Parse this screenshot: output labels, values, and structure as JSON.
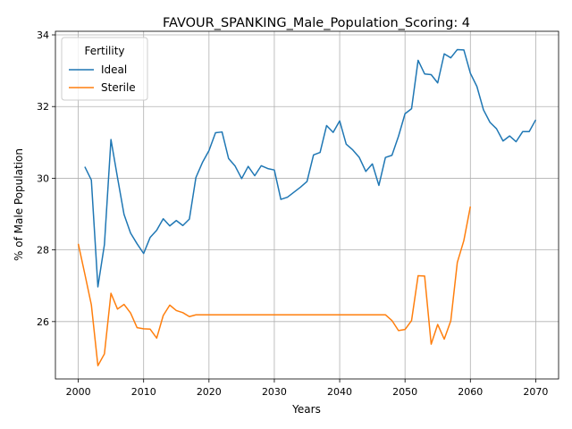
{
  "chart_data": {
    "type": "line",
    "title": "FAVOUR_SPANKING_Male_Population_Scoring: 4",
    "xlabel": "Years",
    "ylabel": "% of Male Population",
    "xlim": [
      1996.5,
      2073.5
    ],
    "ylim": [
      24.4,
      34.1
    ],
    "xticks": [
      2000,
      2010,
      2020,
      2030,
      2040,
      2050,
      2060,
      2070
    ],
    "yticks": [
      26,
      28,
      30,
      32,
      34
    ],
    "grid": true,
    "legend": {
      "title": "Fertility",
      "placement": "top-left"
    },
    "series": [
      {
        "name": "Ideal",
        "color": "#1f77b4",
        "x": [
          2001,
          2002,
          2003,
          2004,
          2005,
          2006,
          2007,
          2008,
          2009,
          2010,
          2011,
          2012,
          2013,
          2014,
          2015,
          2016,
          2017,
          2018,
          2019,
          2020,
          2021,
          2022,
          2023,
          2024,
          2025,
          2026,
          2027,
          2028,
          2029,
          2030,
          2031,
          2032,
          2033,
          2034,
          2035,
          2036,
          2037,
          2038,
          2039,
          2040,
          2041,
          2042,
          2043,
          2044,
          2045,
          2046,
          2047,
          2048,
          2049,
          2050,
          2051,
          2052,
          2053,
          2054,
          2055,
          2056,
          2057,
          2058,
          2059,
          2060,
          2061,
          2062,
          2063,
          2064,
          2065,
          2066,
          2067,
          2068,
          2069,
          2070
        ],
        "values": [
          30.32,
          29.95,
          26.97,
          28.15,
          31.08,
          30.02,
          28.99,
          28.47,
          28.17,
          27.9,
          28.35,
          28.55,
          28.87,
          28.67,
          28.82,
          28.68,
          28.86,
          30.02,
          30.44,
          30.77,
          31.27,
          31.29,
          30.55,
          30.34,
          29.99,
          30.33,
          30.07,
          30.35,
          30.27,
          30.23,
          29.41,
          29.47,
          29.61,
          29.75,
          29.91,
          30.65,
          30.72,
          31.47,
          31.28,
          31.6,
          30.95,
          30.79,
          30.58,
          30.19,
          30.4,
          29.8,
          30.58,
          30.64,
          31.17,
          31.8,
          31.94,
          33.29,
          32.91,
          32.89,
          32.66,
          33.47,
          33.36,
          33.59,
          33.58,
          32.93,
          32.56,
          31.91,
          31.56,
          31.38,
          31.04,
          31.18,
          31.02,
          31.3,
          31.3,
          31.63
        ]
      },
      {
        "name": "Sterile",
        "color": "#ff7f0e",
        "x": [
          2000,
          2001,
          2002,
          2003,
          2004,
          2005,
          2006,
          2007,
          2008,
          2009,
          2010,
          2011,
          2012,
          2013,
          2014,
          2015,
          2016,
          2017,
          2018,
          2019,
          2020,
          2025,
          2030,
          2035,
          2040,
          2045,
          2047,
          2048,
          2049,
          2050,
          2051,
          2052,
          2053,
          2054,
          2055,
          2056,
          2057,
          2058,
          2059,
          2060
        ],
        "values": [
          28.17,
          27.33,
          26.47,
          24.77,
          25.1,
          26.79,
          26.35,
          26.48,
          26.24,
          25.83,
          25.8,
          25.79,
          25.54,
          26.17,
          26.46,
          26.31,
          26.25,
          26.14,
          26.19,
          26.19,
          26.19,
          26.19,
          26.19,
          26.19,
          26.19,
          26.19,
          26.19,
          26.03,
          25.75,
          25.78,
          26.03,
          27.28,
          27.27,
          25.37,
          25.92,
          25.51,
          26.02,
          27.65,
          28.26,
          29.21
        ]
      }
    ]
  }
}
